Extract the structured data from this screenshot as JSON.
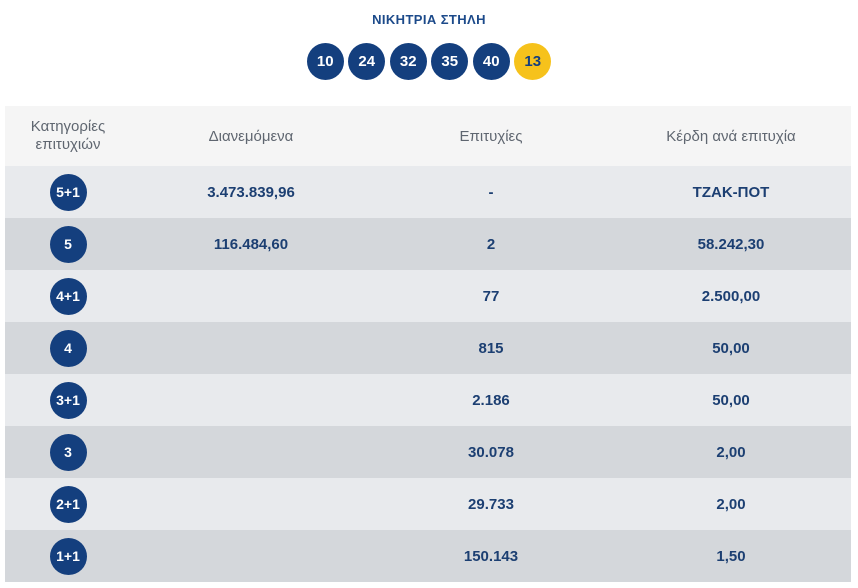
{
  "winning_column": {
    "title": "ΝΙΚΗΤΡΙΑ ΣΤΗΛΗ",
    "numbers": [
      "10",
      "24",
      "32",
      "35",
      "40"
    ],
    "joker": "13"
  },
  "table": {
    "headers": {
      "category_line1": "Κατηγορίες",
      "category_line2": "επιτυχιών",
      "distributed": "Διανεμόμενα",
      "winners": "Επιτυχίες",
      "prize_per_winner": "Κέρδη ανά επιτυχία"
    },
    "rows": [
      {
        "category": "5+1",
        "distributed": "3.473.839,96",
        "winners": "-",
        "prize": "ΤΖΑΚ-ΠΟΤ"
      },
      {
        "category": "5",
        "distributed": "116.484,60",
        "winners": "2",
        "prize": "58.242,30"
      },
      {
        "category": "4+1",
        "distributed": "",
        "winners": "77",
        "prize": "2.500,00"
      },
      {
        "category": "4",
        "distributed": "",
        "winners": "815",
        "prize": "50,00"
      },
      {
        "category": "3+1",
        "distributed": "",
        "winners": "2.186",
        "prize": "50,00"
      },
      {
        "category": "3",
        "distributed": "",
        "winners": "30.078",
        "prize": "2,00"
      },
      {
        "category": "2+1",
        "distributed": "",
        "winners": "29.733",
        "prize": "2,00"
      },
      {
        "category": "1+1",
        "distributed": "",
        "winners": "150.143",
        "prize": "1,50"
      }
    ]
  },
  "colors": {
    "ball_blue": "#143f7e",
    "joker_yellow": "#f6c21b",
    "row_light": "#e8eaed",
    "row_dark": "#d4d7db",
    "header_bg": "#f5f5f5"
  }
}
